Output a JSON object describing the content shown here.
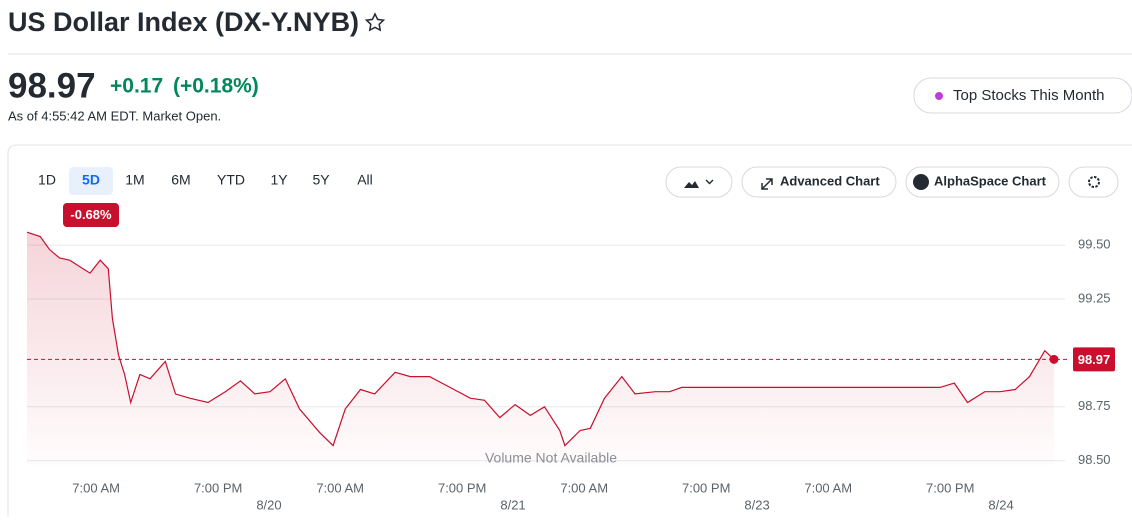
{
  "header": {
    "title": "US Dollar Index (DX-Y.NYB)",
    "price": "98.97",
    "change": "+0.17",
    "change_percent": "(+0.18%)",
    "as_of": "As of 4:55:42 AM EDT. Market Open.",
    "promo_button": "Top Stocks This Month"
  },
  "toolbar": {
    "ranges": [
      "1D",
      "5D",
      "1M",
      "6M",
      "YTD",
      "1Y",
      "5Y",
      "All"
    ],
    "active_range": 1,
    "period_change": "-0.68%",
    "advanced_chart": "Advanced Chart",
    "alphaspace_chart": "AlphaSpace Chart"
  },
  "chart_data": {
    "type": "line",
    "color": "#c8102e",
    "note": "Volume Not Available",
    "x": [
      0,
      1.3,
      2.2,
      3.2,
      4.2,
      5.2,
      6.2,
      7.2,
      8.0,
      8.4,
      9.0,
      9.6,
      10.2,
      11.1,
      12.1,
      13.6,
      14.6,
      16.0,
      17.8,
      19.5,
      21.0,
      22.4,
      23.9,
      25.4,
      26.8,
      28.8,
      30.1,
      31.3,
      32.8,
      34.2,
      36.2,
      37.7,
      39.6,
      41.6,
      43.6,
      45.0,
      46.5,
      48.0,
      49.5,
      50.9,
      52.4,
      52.9,
      54.4,
      55.4,
      56.8,
      58.5,
      59.8,
      61.8,
      63.2,
      64.4,
      72.1,
      89.8,
      91.2,
      92.5,
      94.2,
      95.7,
      97.2,
      98.6,
      100.1,
      101.0
    ],
    "values": [
      99.56,
      99.54,
      99.48,
      99.44,
      99.43,
      99.4,
      99.37,
      99.43,
      99.39,
      99.16,
      98.99,
      98.9,
      98.77,
      98.9,
      98.88,
      98.96,
      98.81,
      98.79,
      98.77,
      98.82,
      98.87,
      98.81,
      98.82,
      98.88,
      98.74,
      98.63,
      98.57,
      98.74,
      98.83,
      98.81,
      98.91,
      98.89,
      98.89,
      98.84,
      98.79,
      98.78,
      98.7,
      98.76,
      98.71,
      98.75,
      98.64,
      98.57,
      98.64,
      98.65,
      98.79,
      98.89,
      98.81,
      98.82,
      98.82,
      98.84,
      98.84,
      98.84,
      98.86,
      98.77,
      98.82,
      98.82,
      98.83,
      98.89,
      99.01,
      98.97
    ],
    "last_value": 98.97,
    "xlim": [
      0,
      101.3
    ],
    "xticks": [
      {
        "value": 6.8,
        "label": "7:00 AM"
      },
      {
        "value": 18.8,
        "label": "7:00 PM"
      },
      {
        "value": 30.8,
        "label": "7:00 AM"
      },
      {
        "value": 42.8,
        "label": "7:00 PM"
      },
      {
        "value": 54.8,
        "label": "7:00 AM"
      },
      {
        "value": 66.8,
        "label": "7:00 PM"
      },
      {
        "value": 78.8,
        "label": "7:00 AM"
      },
      {
        "value": 90.8,
        "label": "7:00 PM"
      }
    ],
    "date_ticks": [
      {
        "value": 23.8,
        "label": "8/20"
      },
      {
        "value": 47.8,
        "label": "8/21"
      },
      {
        "value": 71.8,
        "label": "8/23"
      },
      {
        "value": 95.8,
        "label": "8/24"
      }
    ],
    "ylim": [
      98.48,
      99.57
    ],
    "yticks": [
      {
        "value": 98.5,
        "label": "98.50"
      },
      98.75,
      99.25,
      {
        "value": 99.5,
        "label": "99.50"
      }
    ],
    "grid": true
  }
}
